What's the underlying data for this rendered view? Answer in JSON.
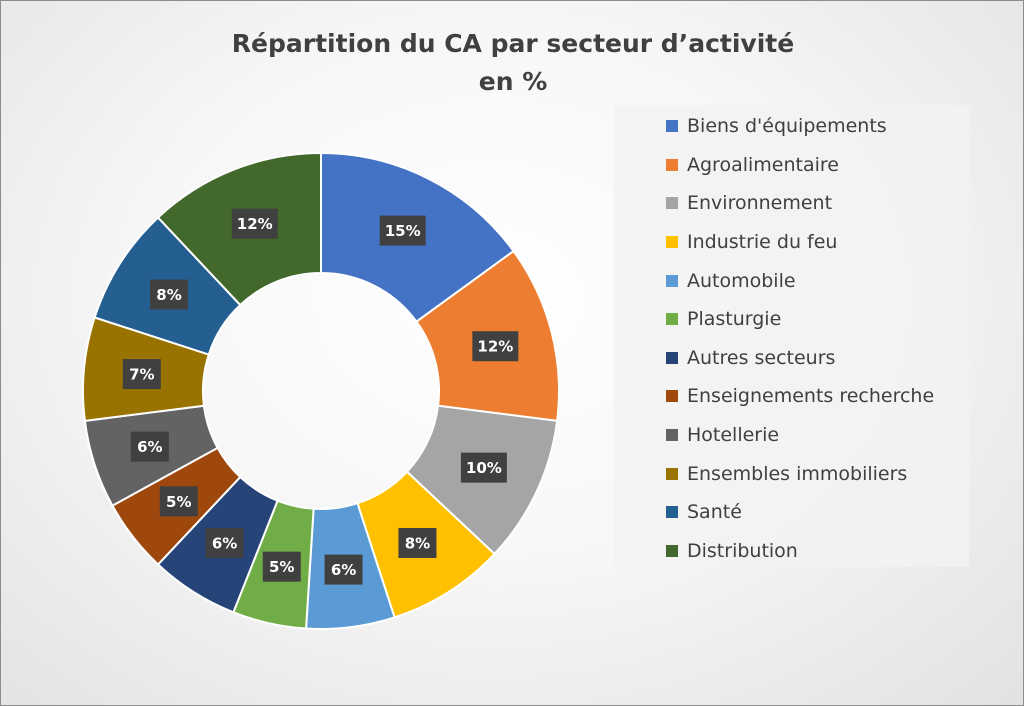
{
  "chart_data": {
    "type": "pie",
    "title": [
      "Répartition du CA par secteur d’activité",
      "en %"
    ],
    "donut": true,
    "legend_position": "right",
    "slices": [
      {
        "label": "Biens d'équipements",
        "value": 15,
        "display": "15%",
        "color": "#4472C4"
      },
      {
        "label": "Agroalimentaire",
        "value": 12,
        "display": "12%",
        "color": "#ED7D31"
      },
      {
        "label": "Environnement",
        "value": 10,
        "display": "10%",
        "color": "#A5A5A5"
      },
      {
        "label": "Industrie du feu",
        "value": 8,
        "display": "8%",
        "color": "#FFC000"
      },
      {
        "label": "Automobile",
        "value": 6,
        "display": "6%",
        "color": "#5B9BD5"
      },
      {
        "label": "Plasturgie",
        "value": 5,
        "display": "5%",
        "color": "#70AD47"
      },
      {
        "label": "Autres secteurs",
        "value": 6,
        "display": "6%",
        "color": "#264478"
      },
      {
        "label": "Enseignements recherche",
        "value": 5,
        "display": "5%",
        "color": "#9E480E"
      },
      {
        "label": "Hotellerie",
        "value": 6,
        "display": "6%",
        "color": "#636363"
      },
      {
        "label": "Ensembles immobiliers",
        "value": 7,
        "display": "7%",
        "color": "#997300"
      },
      {
        "label": "Santé",
        "value": 8,
        "display": "8%",
        "color": "#255E91"
      },
      {
        "label": "Distribution",
        "value": 12,
        "display": "12%",
        "color": "#43682B"
      }
    ]
  }
}
